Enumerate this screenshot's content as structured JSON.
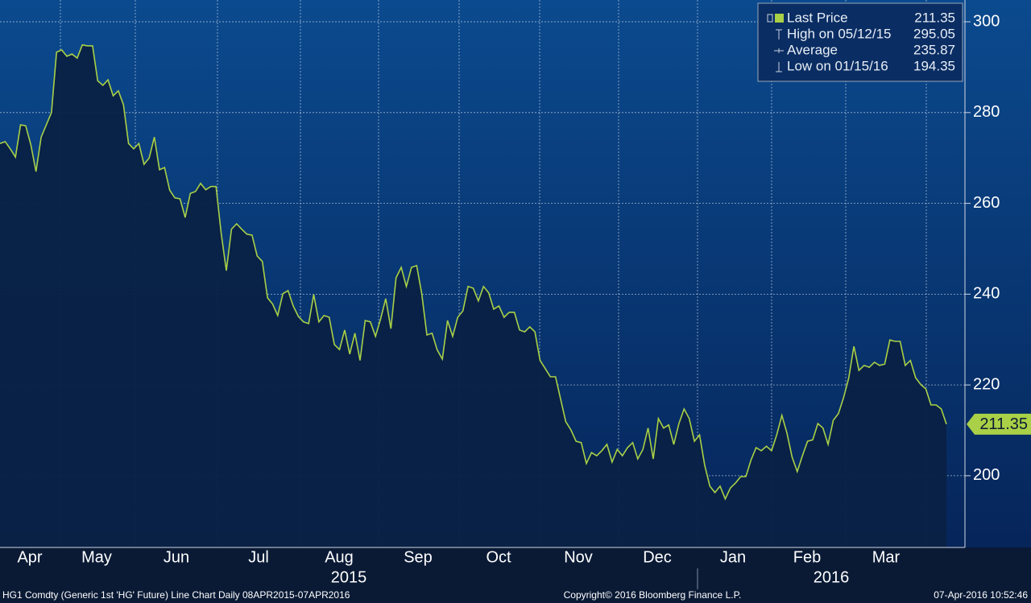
{
  "chart_data": {
    "type": "line",
    "series": [
      {
        "name": "Last Price",
        "color": "#a9d046",
        "values": [
          273.2,
          273.6,
          272,
          270.2,
          277.3,
          277.1,
          272.9,
          267,
          274.6,
          277.3,
          280,
          293.3,
          293.8,
          292.4,
          292.9,
          292,
          294.9,
          294.7,
          294.7,
          287,
          286,
          287.2,
          283.7,
          284.8,
          281.7,
          273.2,
          272,
          273.2,
          268.6,
          270,
          274.6,
          267.4,
          267.9,
          262.9,
          261.2,
          261,
          256.9,
          262.2,
          262.6,
          264.4,
          263,
          263.7,
          263.7,
          253.4,
          245.2,
          254.3,
          255.5,
          254.3,
          253.2,
          253,
          248.4,
          247.2,
          239.2,
          237.8,
          235.3,
          240.1,
          240.8,
          237.4,
          235.1,
          233.9,
          233.5,
          239.9,
          233.9,
          235.3,
          234.9,
          228.9,
          227.8,
          232.1,
          226.8,
          231.4,
          225.4,
          234.2,
          233.9,
          230.7,
          234.6,
          239,
          232.4,
          243.6,
          245.9,
          241.7,
          245.9,
          246.3,
          240.1,
          231,
          231.4,
          227.7,
          225.7,
          234.2,
          230.7,
          234.9,
          236.3,
          241.7,
          241.3,
          238.5,
          241.7,
          240.3,
          236.7,
          237.4,
          234.9,
          236,
          236,
          232.1,
          231.7,
          232.8,
          231.7,
          225.4,
          223.6,
          221.8,
          221.8,
          216.8,
          211.9,
          210.1,
          207.6,
          207.3,
          202.7,
          205.1,
          204.4,
          205.5,
          206.9,
          203,
          205.8,
          204.4,
          206.2,
          207.3,
          203.7,
          205.8,
          210.5,
          203.7,
          212.6,
          210.5,
          211.2,
          206.9,
          211.5,
          214.7,
          212.6,
          207.6,
          209,
          202.3,
          197.7,
          196.3,
          197.7,
          194.9,
          197.3,
          198.4,
          199.8,
          199.8,
          203.4,
          206.2,
          205.5,
          206.5,
          205.5,
          209,
          213.3,
          209.4,
          204.1,
          200.9,
          204.4,
          207.6,
          207.9,
          211.5,
          210.5,
          206.9,
          212.2,
          213.7,
          217.2,
          221.5,
          228.5,
          223.2,
          224.3,
          223.9,
          225,
          224.3,
          224.6,
          229.9,
          229.6,
          229.6,
          224.3,
          225.4,
          221.6,
          220.1,
          219.1,
          215.6,
          215.6,
          214.7,
          211.35
        ]
      }
    ],
    "stats": [
      {
        "label": "High on 05/12/15",
        "value": 295.05
      },
      {
        "label": "Average",
        "value": 235.87
      },
      {
        "label": "Low on 01/15/16",
        "value": 194.35
      }
    ],
    "months": [
      "Apr",
      "May",
      "Jun",
      "Jul",
      "Aug",
      "Sep",
      "Oct",
      "Nov",
      "Dec",
      "Jan",
      "Feb",
      "Mar"
    ],
    "years": [
      "2015",
      "2016"
    ],
    "ylim": [
      184.2,
      304.8
    ],
    "yticks": [
      200,
      220,
      240,
      260,
      280,
      300
    ],
    "grid": true,
    "footer": {
      "left": "HG1 Comdty (Generic 1st 'HG' Future) Line Chart  Daily 08APR2015-07APR2016",
      "center": "Copyright© 2016 Bloomberg Finance L.P.",
      "right": "07-Apr-2016 10:52:46"
    }
  }
}
